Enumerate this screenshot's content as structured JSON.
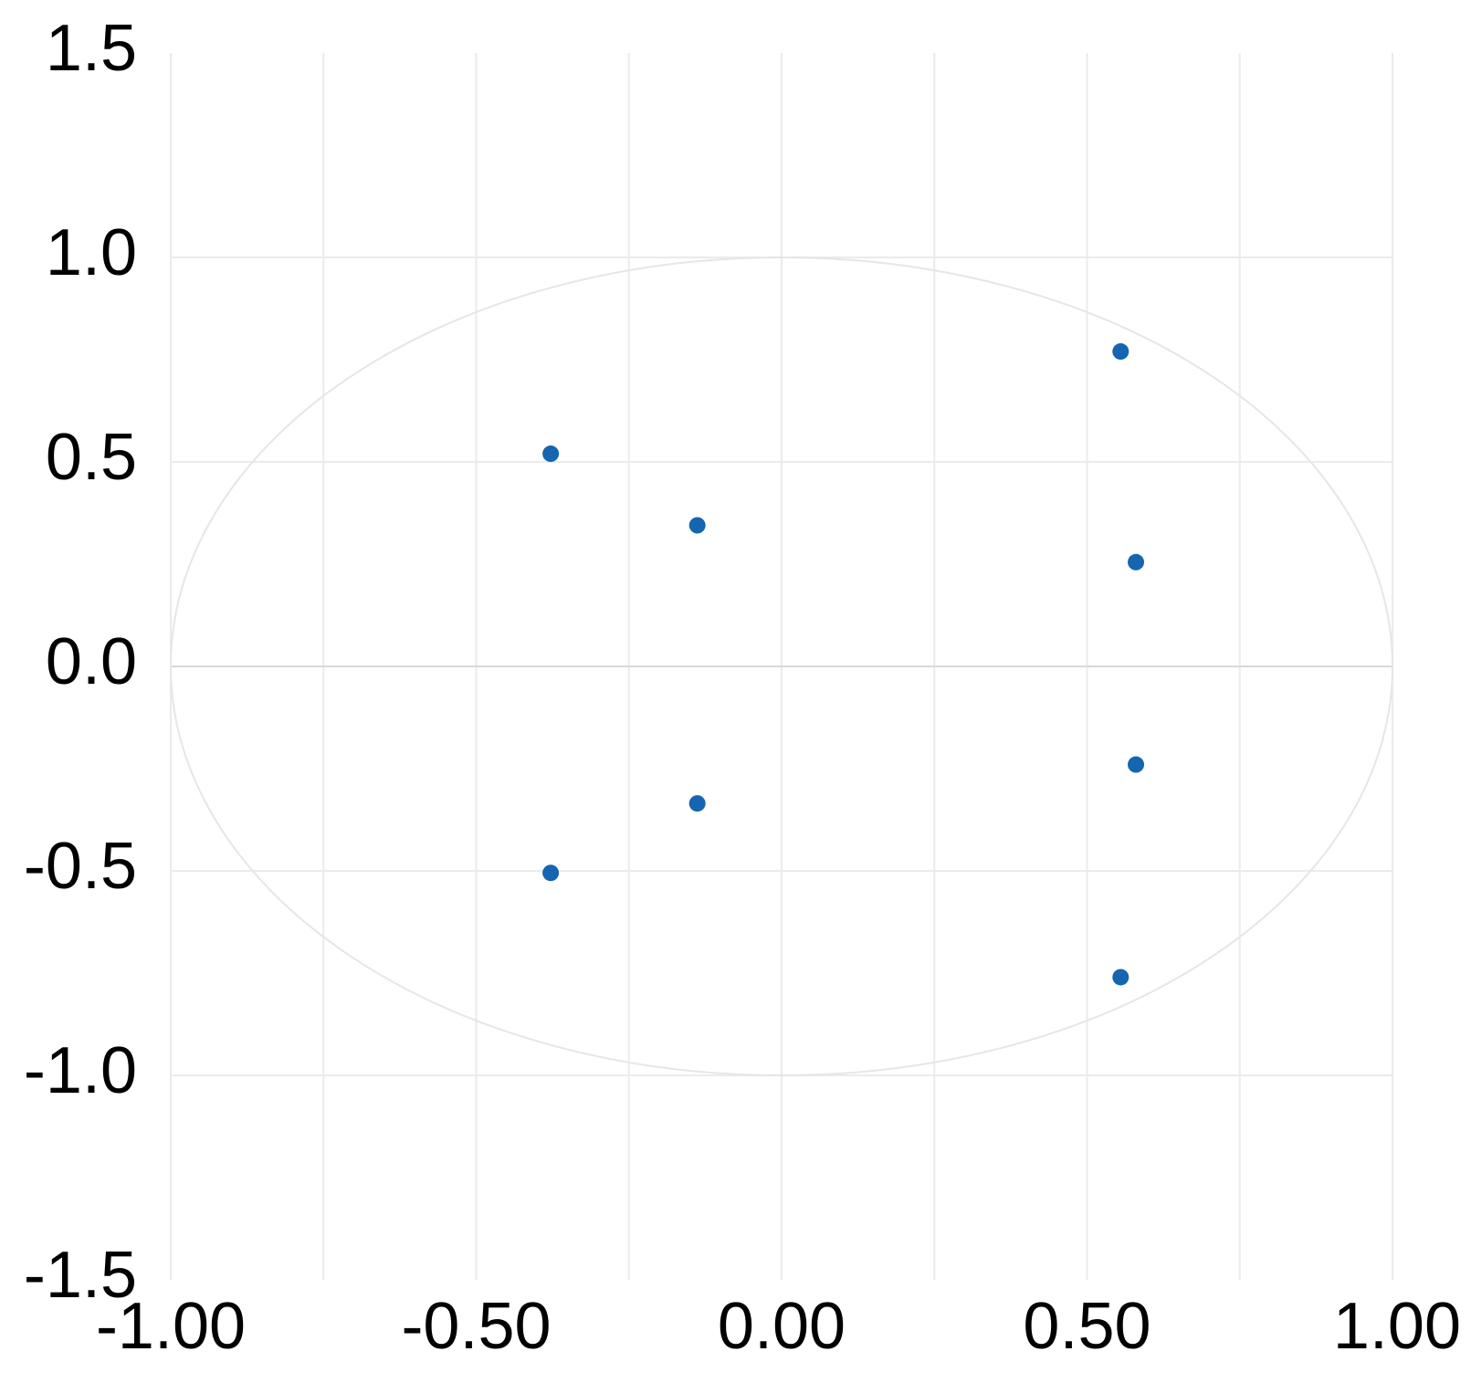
{
  "chart_data": {
    "type": "scatter",
    "title": "",
    "xlabel": "",
    "ylabel": "",
    "xlim": [
      -1.0,
      1.0
    ],
    "ylim": [
      -1.5,
      1.5
    ],
    "x_ticks": [
      "-1.00",
      "-0.50",
      "0.00",
      "0.50",
      "1.00"
    ],
    "y_ticks": [
      "1.5",
      "1.0",
      "0.5",
      "0.0",
      "-0.5",
      "-1.0",
      "-1.5"
    ],
    "x_tick_values": [
      -1.0,
      -0.5,
      0.0,
      0.5,
      1.0
    ],
    "y_tick_values": [
      1.5,
      1.0,
      0.5,
      0.0,
      -0.5,
      -1.0,
      -1.5
    ],
    "x_minor_gridlines": [
      -0.75,
      -0.25,
      0.25,
      0.75
    ],
    "grid": true,
    "reference_shapes": [
      {
        "type": "unit-circle",
        "center": [
          0,
          0
        ],
        "radius": 1.0
      },
      {
        "type": "horizontal-line",
        "y": 0.0
      }
    ],
    "series": [
      {
        "color": "#1565b0",
        "points": [
          {
            "x": 0.555,
            "y": 0.77
          },
          {
            "x": -0.378,
            "y": 0.52
          },
          {
            "x": -0.138,
            "y": 0.345
          },
          {
            "x": 0.58,
            "y": 0.255
          },
          {
            "x": 0.58,
            "y": -0.24
          },
          {
            "x": -0.138,
            "y": -0.335
          },
          {
            "x": -0.378,
            "y": -0.505
          },
          {
            "x": 0.555,
            "y": -0.76
          }
        ]
      }
    ]
  },
  "colors": {
    "grid": "#ebebeb",
    "zero_line": "#d9d9d9",
    "circle": "#e6e6e6",
    "point": "#1565b0",
    "text": "#000000"
  }
}
